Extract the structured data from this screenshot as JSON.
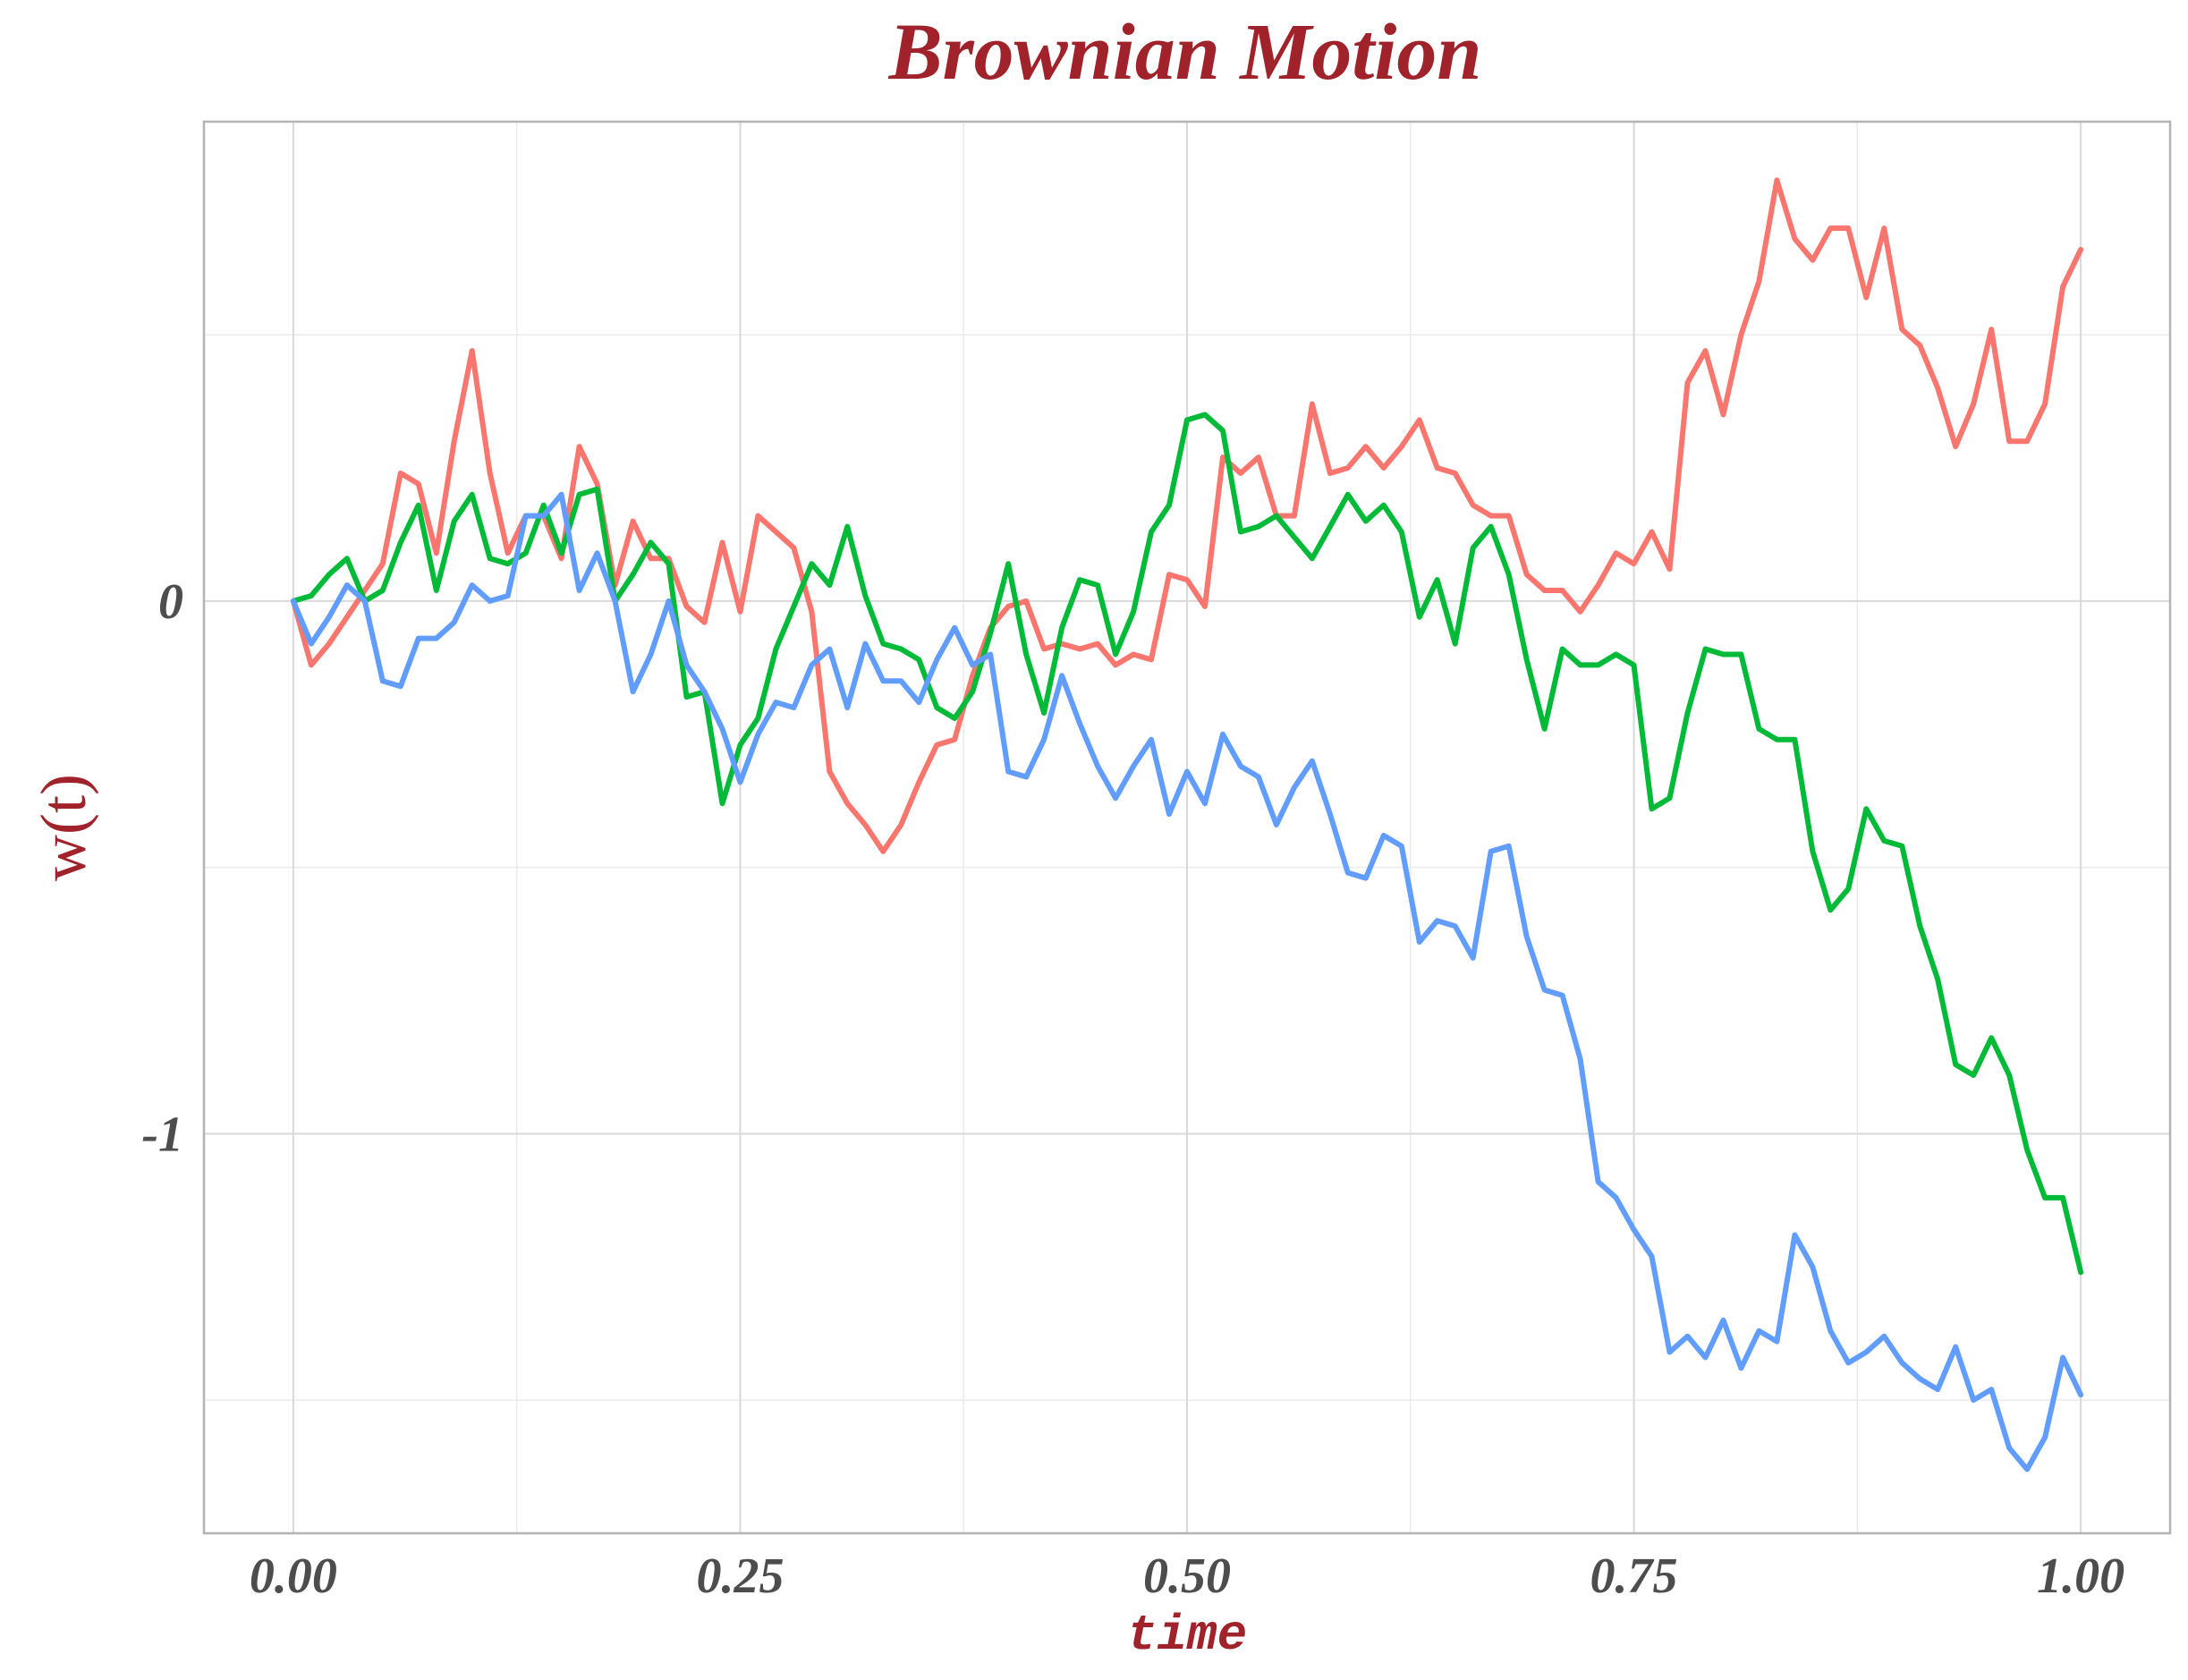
{
  "chart_data": {
    "type": "line",
    "title": "Brownian Motion",
    "xlabel": "time",
    "ylabel": "w(t)",
    "xlim": [
      -0.05,
      1.05
    ],
    "ylim": [
      -1.75,
      0.9
    ],
    "x_ticks": [
      0,
      0.25,
      0.5,
      0.75,
      1
    ],
    "x_tick_labels": [
      "0.00",
      "0.25",
      "0.50",
      "0.75",
      "1.00"
    ],
    "y_ticks": [
      -1,
      0
    ],
    "y_tick_labels": [
      "-1",
      "0"
    ],
    "grid": true,
    "legend": "none",
    "series": [
      {
        "color": "#F8766D",
        "x": [
          0,
          0.01,
          0.02,
          0.03,
          0.04,
          0.05,
          0.06,
          0.07,
          0.08,
          0.09,
          0.1,
          0.11,
          0.12,
          0.13,
          0.14,
          0.15,
          0.16,
          0.17,
          0.18,
          0.19,
          0.2,
          0.21,
          0.22,
          0.23,
          0.24,
          0.25,
          0.26,
          0.27,
          0.28,
          0.29,
          0.3,
          0.31,
          0.32,
          0.33,
          0.34,
          0.35,
          0.36,
          0.37,
          0.38,
          0.39,
          0.4,
          0.41,
          0.42,
          0.43,
          0.44,
          0.45,
          0.46,
          0.47,
          0.48,
          0.49,
          0.5,
          0.51,
          0.52,
          0.53,
          0.54,
          0.55,
          0.56,
          0.57,
          0.58,
          0.59,
          0.6,
          0.61,
          0.62,
          0.63,
          0.64,
          0.65,
          0.66,
          0.67,
          0.68,
          0.69,
          0.7,
          0.71,
          0.72,
          0.73,
          0.74,
          0.75,
          0.76,
          0.77,
          0.78,
          0.79,
          0.8,
          0.81,
          0.82,
          0.83,
          0.84,
          0.85,
          0.86,
          0.87,
          0.88,
          0.89,
          0.9,
          0.91,
          0.92,
          0.93,
          0.94,
          0.95,
          0.96,
          0.97,
          0.98,
          0.99,
          1.0
        ],
        "y": [
          0,
          -0.12,
          -0.08,
          -0.03,
          0.02,
          0.07,
          0.24,
          0.22,
          0.09,
          0.3,
          0.47,
          0.24,
          0.09,
          0.16,
          0.16,
          0.08,
          0.29,
          0.22,
          0.03,
          0.15,
          0.08,
          0.08,
          -0.01,
          -0.04,
          0.11,
          -0.02,
          0.16,
          0.13,
          0.1,
          -0.02,
          -0.32,
          -0.38,
          -0.42,
          -0.47,
          -0.42,
          -0.34,
          -0.27,
          -0.26,
          -0.14,
          -0.05,
          -0.01,
          0,
          -0.09,
          -0.08,
          -0.09,
          -0.08,
          -0.12,
          -0.1,
          -0.11,
          0.05,
          0.04,
          -0.01,
          0.27,
          0.24,
          0.27,
          0.16,
          0.16,
          0.37,
          0.24,
          0.25,
          0.29,
          0.25,
          0.29,
          0.34,
          0.25,
          0.24,
          0.18,
          0.16,
          0.16,
          0.05,
          0.02,
          0.02,
          -0.02,
          0.03,
          0.09,
          0.07,
          0.13,
          0.06,
          0.41,
          0.47,
          0.35,
          0.5,
          0.6,
          0.79,
          0.68,
          0.64,
          0.7,
          0.7,
          0.57,
          0.7,
          0.51,
          0.48,
          0.4,
          0.29,
          0.37,
          0.51,
          0.3,
          0.3,
          0.37,
          0.59,
          0.66
        ]
      },
      {
        "color": "#00BA38",
        "x": [
          0,
          0.01,
          0.02,
          0.03,
          0.04,
          0.05,
          0.06,
          0.07,
          0.08,
          0.09,
          0.1,
          0.11,
          0.12,
          0.13,
          0.14,
          0.15,
          0.16,
          0.17,
          0.18,
          0.19,
          0.2,
          0.21,
          0.22,
          0.23,
          0.24,
          0.25,
          0.26,
          0.27,
          0.28,
          0.29,
          0.3,
          0.31,
          0.32,
          0.33,
          0.34,
          0.35,
          0.36,
          0.37,
          0.38,
          0.39,
          0.4,
          0.41,
          0.42,
          0.43,
          0.44,
          0.45,
          0.46,
          0.47,
          0.48,
          0.49,
          0.5,
          0.51,
          0.52,
          0.53,
          0.54,
          0.55,
          0.56,
          0.57,
          0.58,
          0.59,
          0.6,
          0.61,
          0.62,
          0.63,
          0.64,
          0.65,
          0.66,
          0.67,
          0.68,
          0.69,
          0.7,
          0.71,
          0.72,
          0.73,
          0.74,
          0.75,
          0.76,
          0.77,
          0.78,
          0.79,
          0.8,
          0.81,
          0.82,
          0.83,
          0.84,
          0.85,
          0.86,
          0.87,
          0.88,
          0.89,
          0.9,
          0.91,
          0.92,
          0.93,
          0.94,
          0.95,
          0.96,
          0.97,
          0.98,
          0.99,
          1.0
        ],
        "y": [
          0,
          0.01,
          0.05,
          0.08,
          0,
          0.02,
          0.11,
          0.18,
          0.02,
          0.15,
          0.2,
          0.08,
          0.07,
          0.09,
          0.18,
          0.09,
          0.2,
          0.21,
          0,
          0.05,
          0.11,
          0.07,
          -0.18,
          -0.17,
          -0.38,
          -0.27,
          -0.22,
          -0.09,
          -0.01,
          0.07,
          0.03,
          0.14,
          0.01,
          -0.08,
          -0.09,
          -0.11,
          -0.2,
          -0.22,
          -0.17,
          -0.06,
          0.07,
          -0.1,
          -0.21,
          -0.05,
          0.04,
          0.03,
          -0.1,
          -0.02,
          0.13,
          0.18,
          0.34,
          0.35,
          0.32,
          0.13,
          0.14,
          0.16,
          0.12,
          0.08,
          0.14,
          0.2,
          0.15,
          0.18,
          0.13,
          -0.03,
          0.04,
          -0.08,
          0.1,
          0.14,
          0.05,
          -0.11,
          -0.24,
          -0.09,
          -0.12,
          -0.12,
          -0.1,
          -0.12,
          -0.39,
          -0.37,
          -0.21,
          -0.09,
          -0.1,
          -0.1,
          -0.24,
          -0.26,
          -0.26,
          -0.47,
          -0.58,
          -0.54,
          -0.39,
          -0.45,
          -0.46,
          -0.61,
          -0.71,
          -0.87,
          -0.89,
          -0.82,
          -0.89,
          -1.03,
          -1.12,
          -1.12,
          -1.26
        ]
      },
      {
        "color": "#619CFF",
        "x": [
          0,
          0.01,
          0.02,
          0.03,
          0.04,
          0.05,
          0.06,
          0.07,
          0.08,
          0.09,
          0.1,
          0.11,
          0.12,
          0.13,
          0.14,
          0.15,
          0.16,
          0.17,
          0.18,
          0.19,
          0.2,
          0.21,
          0.22,
          0.23,
          0.24,
          0.25,
          0.26,
          0.27,
          0.28,
          0.29,
          0.3,
          0.31,
          0.32,
          0.33,
          0.34,
          0.35,
          0.36,
          0.37,
          0.38,
          0.39,
          0.4,
          0.41,
          0.42,
          0.43,
          0.44,
          0.45,
          0.46,
          0.47,
          0.48,
          0.49,
          0.5,
          0.51,
          0.52,
          0.53,
          0.54,
          0.55,
          0.56,
          0.57,
          0.58,
          0.59,
          0.6,
          0.61,
          0.62,
          0.63,
          0.64,
          0.65,
          0.66,
          0.67,
          0.68,
          0.69,
          0.7,
          0.71,
          0.72,
          0.73,
          0.74,
          0.75,
          0.76,
          0.77,
          0.78,
          0.79,
          0.8,
          0.81,
          0.82,
          0.83,
          0.84,
          0.85,
          0.86,
          0.87,
          0.88,
          0.89,
          0.9,
          0.91,
          0.92,
          0.93,
          0.94,
          0.95,
          0.96,
          0.97,
          0.98,
          0.99,
          1.0
        ],
        "y": [
          0,
          -0.08,
          -0.03,
          0.03,
          0,
          -0.15,
          -0.16,
          -0.07,
          -0.07,
          -0.04,
          0.03,
          0,
          0.01,
          0.16,
          0.16,
          0.2,
          0.02,
          0.09,
          0,
          -0.17,
          -0.1,
          0,
          -0.12,
          -0.17,
          -0.24,
          -0.34,
          -0.25,
          -0.19,
          -0.2,
          -0.12,
          -0.09,
          -0.2,
          -0.08,
          -0.15,
          -0.15,
          -0.19,
          -0.11,
          -0.05,
          -0.12,
          -0.1,
          -0.32,
          -0.33,
          -0.26,
          -0.14,
          -0.23,
          -0.31,
          -0.37,
          -0.31,
          -0.26,
          -0.4,
          -0.32,
          -0.38,
          -0.25,
          -0.31,
          -0.33,
          -0.42,
          -0.35,
          -0.3,
          -0.4,
          -0.51,
          -0.52,
          -0.44,
          -0.46,
          -0.64,
          -0.6,
          -0.61,
          -0.67,
          -0.47,
          -0.46,
          -0.63,
          -0.73,
          -0.74,
          -0.86,
          -1.09,
          -1.12,
          -1.18,
          -1.23,
          -1.41,
          -1.38,
          -1.42,
          -1.35,
          -1.44,
          -1.37,
          -1.39,
          -1.19,
          -1.25,
          -1.37,
          -1.43,
          -1.41,
          -1.38,
          -1.43,
          -1.46,
          -1.48,
          -1.4,
          -1.5,
          -1.48,
          -1.59,
          -1.63,
          -1.57,
          -1.42,
          -1.49
        ]
      }
    ]
  }
}
